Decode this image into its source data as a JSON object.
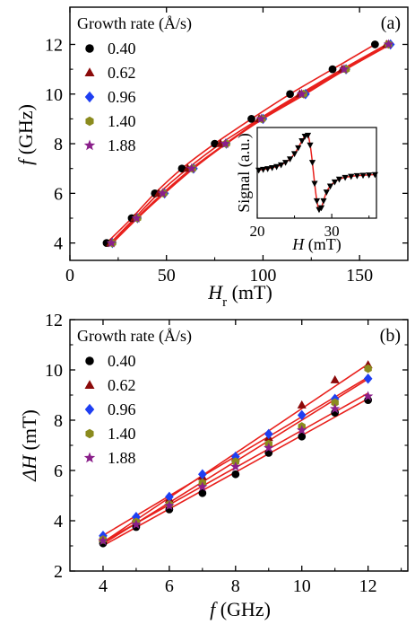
{
  "chart_data": [
    {
      "type": "scatter",
      "panel_label": "(a)",
      "xlabel": "H",
      "xlabel_sub": "r",
      "xlabel_unit": " (mT)",
      "ylabel": "f",
      "ylabel_unit": " (GHz)",
      "xlim": [
        0,
        175
      ],
      "ylim": [
        3.3,
        13.5
      ],
      "xticks": [
        0,
        50,
        100,
        150
      ],
      "yticks": [
        4,
        6,
        8,
        10,
        12
      ],
      "legend_title": "Growth rate (Å/s)",
      "legend_position": "top-left",
      "fit_color": "#e8201c",
      "series": [
        {
          "name": "0.40",
          "marker": "circle",
          "color": "#000000",
          "x": [
            19,
            32,
            44,
            58,
            75,
            94,
            114,
            136,
            158
          ],
          "y": [
            4,
            5,
            6,
            7,
            8,
            9,
            10,
            11,
            12
          ]
        },
        {
          "name": "0.62",
          "marker": "triangle",
          "color": "#8b0a0a",
          "x": [
            21,
            33.5,
            46,
            61,
            78,
            98,
            119,
            141,
            164
          ],
          "y": [
            4,
            5,
            6,
            7,
            8,
            9,
            10,
            11,
            12
          ]
        },
        {
          "name": "0.96",
          "marker": "diamond",
          "color": "#1f3ff2",
          "x": [
            22,
            35,
            49,
            64,
            81,
            100,
            122,
            143,
            166
          ],
          "y": [
            4,
            5,
            6,
            7,
            8,
            9,
            10,
            11,
            12
          ]
        },
        {
          "name": "1.40",
          "marker": "hexagon",
          "color": "#8b8b1e",
          "x": [
            22,
            35,
            48.5,
            63.5,
            81,
            99.5,
            121,
            143,
            165
          ],
          "y": [
            4,
            5,
            6,
            7,
            8,
            9,
            10,
            11,
            12
          ]
        },
        {
          "name": "1.88",
          "marker": "star",
          "color": "#8a1f8a",
          "x": [
            21.5,
            34.5,
            48,
            63,
            80.5,
            99,
            120,
            142,
            165
          ],
          "y": [
            4,
            5,
            6,
            7,
            8,
            9,
            10,
            11,
            12
          ]
        }
      ],
      "inset": {
        "xlabel": "H",
        "xlabel_unit": " (mT)",
        "ylabel": "Signal (a.u.)",
        "xlim": [
          20,
          36
        ],
        "ylim": [
          -1.3,
          1.3
        ],
        "xticks": [
          20,
          30
        ],
        "points_color": "#000000",
        "fit_color": "#e8201c",
        "x": [
          20.2,
          20.8,
          21.4,
          22.0,
          22.6,
          23.2,
          23.8,
          24.4,
          25.0,
          25.5,
          26.0,
          26.4,
          26.8,
          27.1,
          27.4,
          27.7,
          28.0,
          28.3,
          28.6,
          28.9,
          29.3,
          29.8,
          30.4,
          31.0,
          31.8,
          32.6,
          33.4,
          34.2,
          35.0,
          35.8
        ],
        "y": [
          0.08,
          0.1,
          0.12,
          0.15,
          0.18,
          0.23,
          0.3,
          0.4,
          0.55,
          0.72,
          0.92,
          1.05,
          1.08,
          0.8,
          0.3,
          -0.3,
          -0.8,
          -1.05,
          -1.0,
          -0.8,
          -0.55,
          -0.38,
          -0.26,
          -0.18,
          -0.13,
          -0.1,
          -0.08,
          -0.07,
          -0.06,
          -0.05
        ]
      }
    },
    {
      "type": "scatter",
      "panel_label": "(b)",
      "xlabel": "f",
      "xlabel_unit": " (GHz)",
      "ylabel": "ΔH",
      "ylabel_unit": " (mT)",
      "xlim": [
        3,
        13.2
      ],
      "ylim": [
        2,
        12
      ],
      "xticks": [
        4,
        6,
        8,
        10,
        12
      ],
      "yticks": [
        2,
        4,
        6,
        8,
        10,
        12
      ],
      "legend_title": "Growth rate (Å/s)",
      "legend_position": "top-left",
      "fit_color": "#e8201c",
      "series": [
        {
          "name": "0.40",
          "marker": "circle",
          "color": "#000000",
          "x": [
            4,
            5,
            6,
            7,
            8,
            9,
            10,
            11,
            12
          ],
          "y": [
            3.1,
            3.75,
            4.45,
            5.1,
            5.85,
            6.7,
            7.35,
            8.3,
            8.8
          ]
        },
        {
          "name": "0.62",
          "marker": "triangle",
          "color": "#8b0a0a",
          "x": [
            4,
            5,
            6,
            7,
            8,
            9,
            10,
            11,
            12
          ],
          "y": [
            3.3,
            4.1,
            4.85,
            5.75,
            6.5,
            7.3,
            8.6,
            9.6,
            10.2
          ]
        },
        {
          "name": "0.96",
          "marker": "diamond",
          "color": "#1f3ff2",
          "x": [
            4,
            5,
            6,
            7,
            8,
            9,
            10,
            11,
            12
          ],
          "y": [
            3.4,
            4.15,
            4.95,
            5.85,
            6.55,
            7.45,
            8.2,
            8.85,
            9.65
          ]
        },
        {
          "name": "1.40",
          "marker": "hexagon",
          "color": "#8b8b1e",
          "x": [
            4,
            5,
            6,
            7,
            8,
            9,
            10,
            11,
            12
          ],
          "y": [
            3.25,
            3.95,
            4.65,
            5.5,
            6.35,
            7.05,
            7.75,
            8.7,
            10.05
          ]
        },
        {
          "name": "1.88",
          "marker": "star",
          "color": "#8a1f8a",
          "x": [
            4,
            5,
            6,
            7,
            8,
            9,
            10,
            11,
            12
          ],
          "y": [
            3.2,
            3.85,
            4.6,
            5.35,
            6.15,
            6.9,
            7.6,
            8.45,
            8.95
          ]
        }
      ]
    }
  ]
}
